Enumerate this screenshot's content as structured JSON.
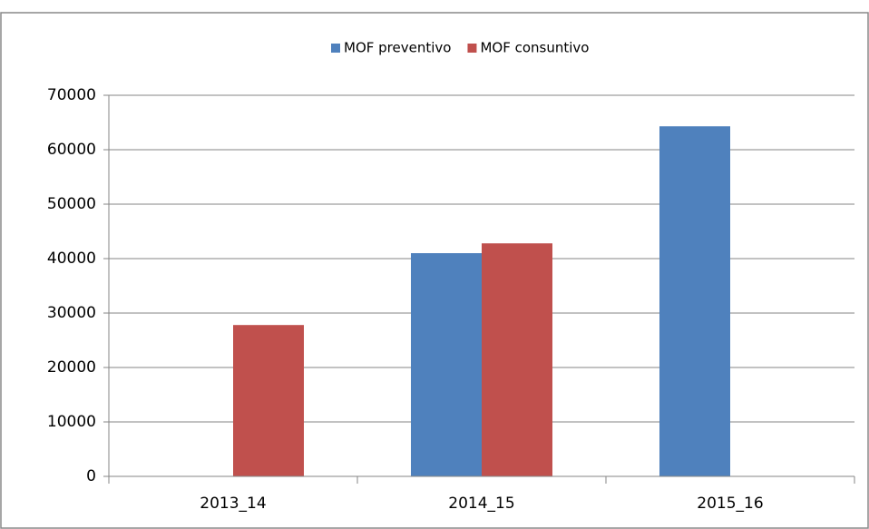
{
  "chart_data": {
    "type": "bar",
    "categories": [
      "2013_14",
      "2014_15",
      "2015_16"
    ],
    "series": [
      {
        "name": "MOF preventivo",
        "color": "#4f81bd",
        "values": [
          null,
          41000,
          64300
        ]
      },
      {
        "name": "MOF consuntivo",
        "color": "#c0504d",
        "values": [
          27800,
          42800,
          null
        ]
      }
    ],
    "ylim": [
      0,
      70000
    ],
    "yticks": [
      0,
      10000,
      20000,
      30000,
      40000,
      50000,
      60000,
      70000
    ],
    "grid": true,
    "legend": "top"
  }
}
